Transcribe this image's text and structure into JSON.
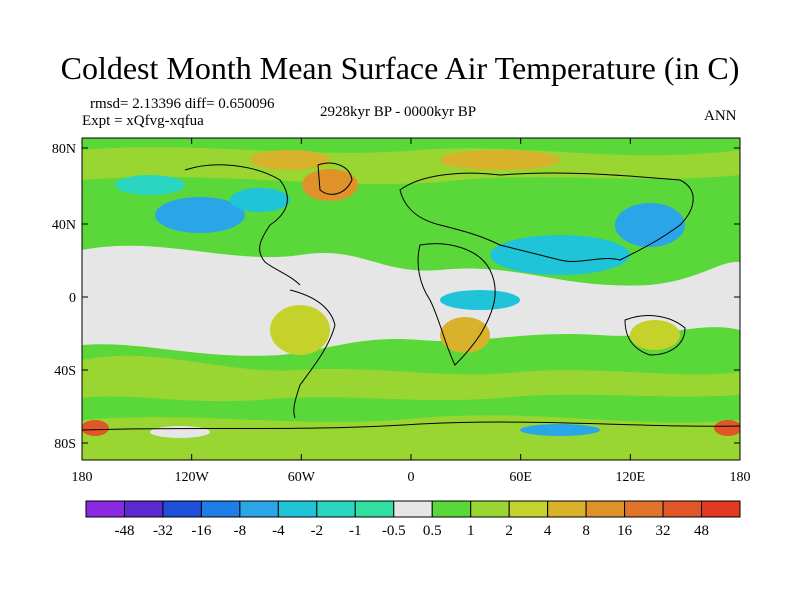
{
  "title": "Coldest Month Mean Surface Air Temperature (in C)",
  "stats": "rmsd= 2.13396 diff= 0.650096",
  "experiment": "Expt = xQfvg-xqfua",
  "period": "2928kyr BP - 0000kyr BP",
  "season": "ANN",
  "lat_ticks": [
    "80N",
    "40N",
    "0",
    "40S",
    "80S"
  ],
  "lon_ticks": [
    "180",
    "120W",
    "60W",
    "0",
    "60E",
    "120E",
    "180"
  ],
  "colorbar": {
    "colors": [
      "#8a2be2",
      "#5a2ad0",
      "#1e4fd8",
      "#1e7de6",
      "#2aa6e8",
      "#20c4d8",
      "#2ad6c0",
      "#30e0a0",
      "#e6e6e6",
      "#5ad83a",
      "#9ad632",
      "#c6d22c",
      "#d8b22a",
      "#e0922a",
      "#e0742a",
      "#e05628",
      "#e03a22"
    ],
    "labels": [
      "-48",
      "-32",
      "-16",
      "-8",
      "-4",
      "-2",
      "-1",
      "-0.5",
      "0.5",
      "1",
      "2",
      "4",
      "8",
      "16",
      "32",
      "48"
    ]
  }
}
